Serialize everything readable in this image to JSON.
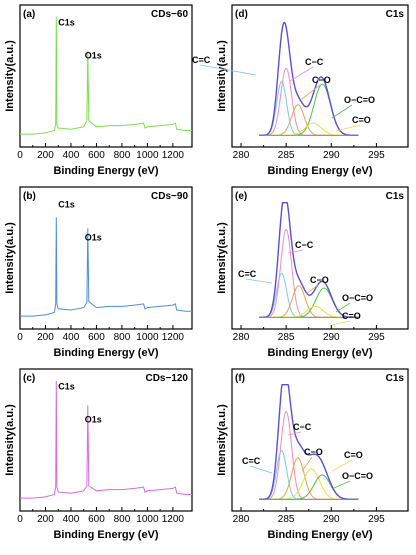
{
  "figure": {
    "panels": [
      {
        "id": "a",
        "tag": "(a)",
        "title": "CDs−60"
      },
      {
        "id": "b",
        "tag": "(b)",
        "title": "CDs−90"
      },
      {
        "id": "c",
        "tag": "(c)",
        "title": "CDs−120"
      },
      {
        "id": "d",
        "tag": "(d)",
        "title": "C1s"
      },
      {
        "id": "e",
        "tag": "(e)",
        "title": "C1s"
      },
      {
        "id": "f",
        "tag": "(f)",
        "title": "C1s"
      }
    ]
  },
  "chart_data": [
    {
      "panel": "a",
      "type": "line",
      "title": "CDs−60",
      "xlabel": "Binding Energy (eV)",
      "ylabel": "Intensity(a.u.)",
      "xlim": [
        0,
        1350
      ],
      "xticks": [
        0,
        200,
        400,
        600,
        800,
        1000,
        1200
      ],
      "color": "#7CE04A",
      "annotations": [
        {
          "text": "C1s",
          "x": 285
        },
        {
          "text": "O1s",
          "x": 532
        }
      ],
      "series": [
        {
          "x": [
            0,
            100,
            200,
            270,
            280,
            285,
            290,
            300,
            400,
            500,
            525,
            532,
            540,
            600,
            700,
            800,
            900,
            970,
            980,
            1000,
            1100,
            1200,
            1220,
            1230,
            1300,
            1350
          ],
          "y": [
            0.04,
            0.04,
            0.05,
            0.07,
            0.12,
            1.0,
            0.12,
            0.09,
            0.08,
            0.1,
            0.15,
            0.72,
            0.15,
            0.1,
            0.11,
            0.11,
            0.12,
            0.13,
            0.09,
            0.1,
            0.11,
            0.12,
            0.13,
            0.08,
            0.07,
            0.07
          ]
        }
      ]
    },
    {
      "panel": "b",
      "type": "line",
      "title": "CDs−90",
      "xlabel": "Binding Energy (eV)",
      "ylabel": "Intensity(a.u.)",
      "xlim": [
        0,
        1350
      ],
      "xticks": [
        0,
        200,
        400,
        600,
        800,
        1000,
        1200
      ],
      "color": "#4A8FE0",
      "annotations": [
        {
          "text": "C1s",
          "x": 285
        },
        {
          "text": "O1s",
          "x": 532
        }
      ],
      "series": [
        {
          "x": [
            0,
            100,
            200,
            270,
            280,
            285,
            290,
            300,
            400,
            500,
            525,
            532,
            540,
            600,
            700,
            800,
            900,
            970,
            980,
            1000,
            1100,
            1200,
            1220,
            1230,
            1300,
            1350
          ],
          "y": [
            0.04,
            0.04,
            0.05,
            0.07,
            0.14,
            0.85,
            0.14,
            0.1,
            0.09,
            0.11,
            0.15,
            0.76,
            0.16,
            0.11,
            0.12,
            0.12,
            0.13,
            0.14,
            0.1,
            0.11,
            0.12,
            0.13,
            0.14,
            0.09,
            0.08,
            0.08
          ]
        }
      ]
    },
    {
      "panel": "c",
      "type": "line",
      "title": "CDs−120",
      "xlabel": "Binding Energy (eV)",
      "ylabel": "Intensity(a.u.)",
      "xlim": [
        0,
        1350
      ],
      "xticks": [
        0,
        200,
        400,
        600,
        800,
        1000,
        1200
      ],
      "color": "#D96AE0",
      "annotations": [
        {
          "text": "C1s",
          "x": 285
        },
        {
          "text": "O1s",
          "x": 532
        }
      ],
      "series": [
        {
          "x": [
            0,
            100,
            200,
            270,
            280,
            285,
            290,
            300,
            400,
            500,
            525,
            532,
            540,
            600,
            700,
            800,
            900,
            970,
            980,
            1000,
            1100,
            1200,
            1220,
            1230,
            1300,
            1350
          ],
          "y": [
            0.04,
            0.04,
            0.05,
            0.07,
            0.13,
            1.0,
            0.13,
            0.09,
            0.08,
            0.1,
            0.14,
            0.8,
            0.14,
            0.1,
            0.11,
            0.11,
            0.12,
            0.13,
            0.09,
            0.1,
            0.11,
            0.12,
            0.13,
            0.08,
            0.07,
            0.07
          ]
        }
      ]
    },
    {
      "panel": "d",
      "type": "line",
      "title": "C1s",
      "xlabel": "Binding Energy (eV)",
      "ylabel": "Intensity(a.u.)",
      "xlim": [
        279,
        298.5
      ],
      "xticks": [
        280,
        285,
        290,
        295
      ],
      "envelope_color": "#5A4FD6",
      "components": [
        {
          "label": "C=C",
          "center": 284.5,
          "height": 0.44,
          "width": 0.55,
          "color": "#7CC7E8"
        },
        {
          "label": "C−C",
          "center": 285.0,
          "height": 0.55,
          "width": 0.6,
          "color": "#F08CC0"
        },
        {
          "label": "C−O",
          "center": 286.3,
          "height": 0.25,
          "width": 0.7,
          "color": "#E8A050"
        },
        {
          "label": "O−C=O",
          "center": 289.0,
          "height": 0.42,
          "width": 0.9,
          "color": "#4CC04C"
        },
        {
          "label": "C=O",
          "center": 288.0,
          "height": 0.1,
          "width": 0.9,
          "color": "#E6E040"
        }
      ]
    },
    {
      "panel": "e",
      "type": "line",
      "title": "C1s",
      "xlabel": "Binding Energy (eV)",
      "ylabel": "Intensity(a.u.)",
      "xlim": [
        279,
        298.5
      ],
      "xticks": [
        280,
        285,
        290,
        295
      ],
      "envelope_color": "#5A4FD6",
      "components": [
        {
          "label": "C=C",
          "center": 284.5,
          "height": 0.36,
          "width": 0.55,
          "color": "#7CC7E8"
        },
        {
          "label": "C−C",
          "center": 285.0,
          "height": 0.72,
          "width": 0.6,
          "color": "#F08CC0"
        },
        {
          "label": "C−O",
          "center": 286.4,
          "height": 0.26,
          "width": 0.7,
          "color": "#E8A050"
        },
        {
          "label": "O−C=O",
          "center": 289.2,
          "height": 0.24,
          "width": 0.9,
          "color": "#4CC04C"
        },
        {
          "label": "C=O",
          "center": 288.2,
          "height": 0.09,
          "width": 0.9,
          "color": "#E6E040"
        }
      ]
    },
    {
      "panel": "f",
      "type": "line",
      "title": "C1s",
      "xlabel": "Binding Energy (eV)",
      "ylabel": "Intensity(a.u.)",
      "xlim": [
        279,
        298.5
      ],
      "xticks": [
        280,
        285,
        290,
        295
      ],
      "envelope_color": "#5A4FD6",
      "components": [
        {
          "label": "C=C",
          "center": 284.5,
          "height": 0.4,
          "width": 0.55,
          "color": "#7CC7E8"
        },
        {
          "label": "C−C",
          "center": 285.0,
          "height": 0.72,
          "width": 0.6,
          "color": "#F08CC0"
        },
        {
          "label": "C−O",
          "center": 286.3,
          "height": 0.34,
          "width": 0.7,
          "color": "#E8A050"
        },
        {
          "label": "C=O",
          "center": 287.8,
          "height": 0.25,
          "width": 0.9,
          "color": "#E6E040"
        },
        {
          "label": "O−C=O",
          "center": 289.0,
          "height": 0.2,
          "width": 0.9,
          "color": "#4CC04C"
        }
      ]
    }
  ]
}
